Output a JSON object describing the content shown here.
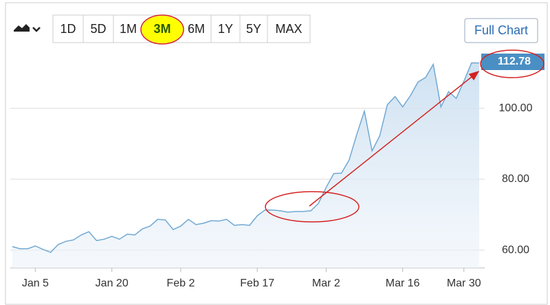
{
  "toolbar": {
    "ranges": [
      "1D",
      "5D",
      "1M",
      "3M",
      "6M",
      "1Y",
      "5Y",
      "MAX"
    ],
    "full_chart": "Full Chart"
  },
  "chart_data": {
    "type": "area",
    "color": "#6fa8d3",
    "categories": [
      null,
      null,
      null,
      "Jan 5",
      null,
      null,
      null,
      null,
      null,
      null,
      null,
      null,
      null,
      "Jan 20",
      null,
      null,
      null,
      null,
      null,
      null,
      null,
      null,
      "Feb 2",
      null,
      null,
      null,
      null,
      null,
      null,
      null,
      null,
      null,
      "Feb 17",
      null,
      null,
      null,
      null,
      null,
      null,
      null,
      null,
      "Mar 2",
      null,
      null,
      null,
      null,
      null,
      null,
      null,
      null,
      null,
      "Mar 16",
      null,
      null,
      null,
      null,
      null,
      null,
      null,
      "Mar 30",
      null,
      null
    ],
    "values": [
      61.0,
      60.4,
      60.4,
      61.2,
      60.2,
      59.4,
      61.6,
      62.5,
      62.9,
      64.3,
      65.2,
      62.7,
      63.1,
      63.9,
      63.1,
      64.5,
      64.3,
      66.0,
      66.8,
      68.7,
      68.5,
      65.8,
      66.8,
      68.7,
      67.2,
      67.6,
      68.3,
      68.2,
      68.7,
      67.0,
      67.2,
      67.0,
      69.7,
      71.3,
      71.3,
      71.1,
      70.7,
      70.9,
      70.9,
      71.1,
      73.2,
      77.7,
      81.6,
      81.7,
      85.4,
      92.6,
      99.2,
      88.0,
      92.2,
      101.0,
      103.3,
      100.4,
      103.5,
      107.4,
      108.7,
      112.4,
      100.4,
      104.7,
      102.8,
      107.6,
      112.8,
      112.78
    ],
    "ylim": [
      55,
      116
    ],
    "yticks": [
      {
        "value": 60,
        "label": "60.00"
      },
      {
        "value": 80,
        "label": "80.00"
      },
      {
        "value": 100,
        "label": "100.00"
      }
    ],
    "grid": true
  }
}
